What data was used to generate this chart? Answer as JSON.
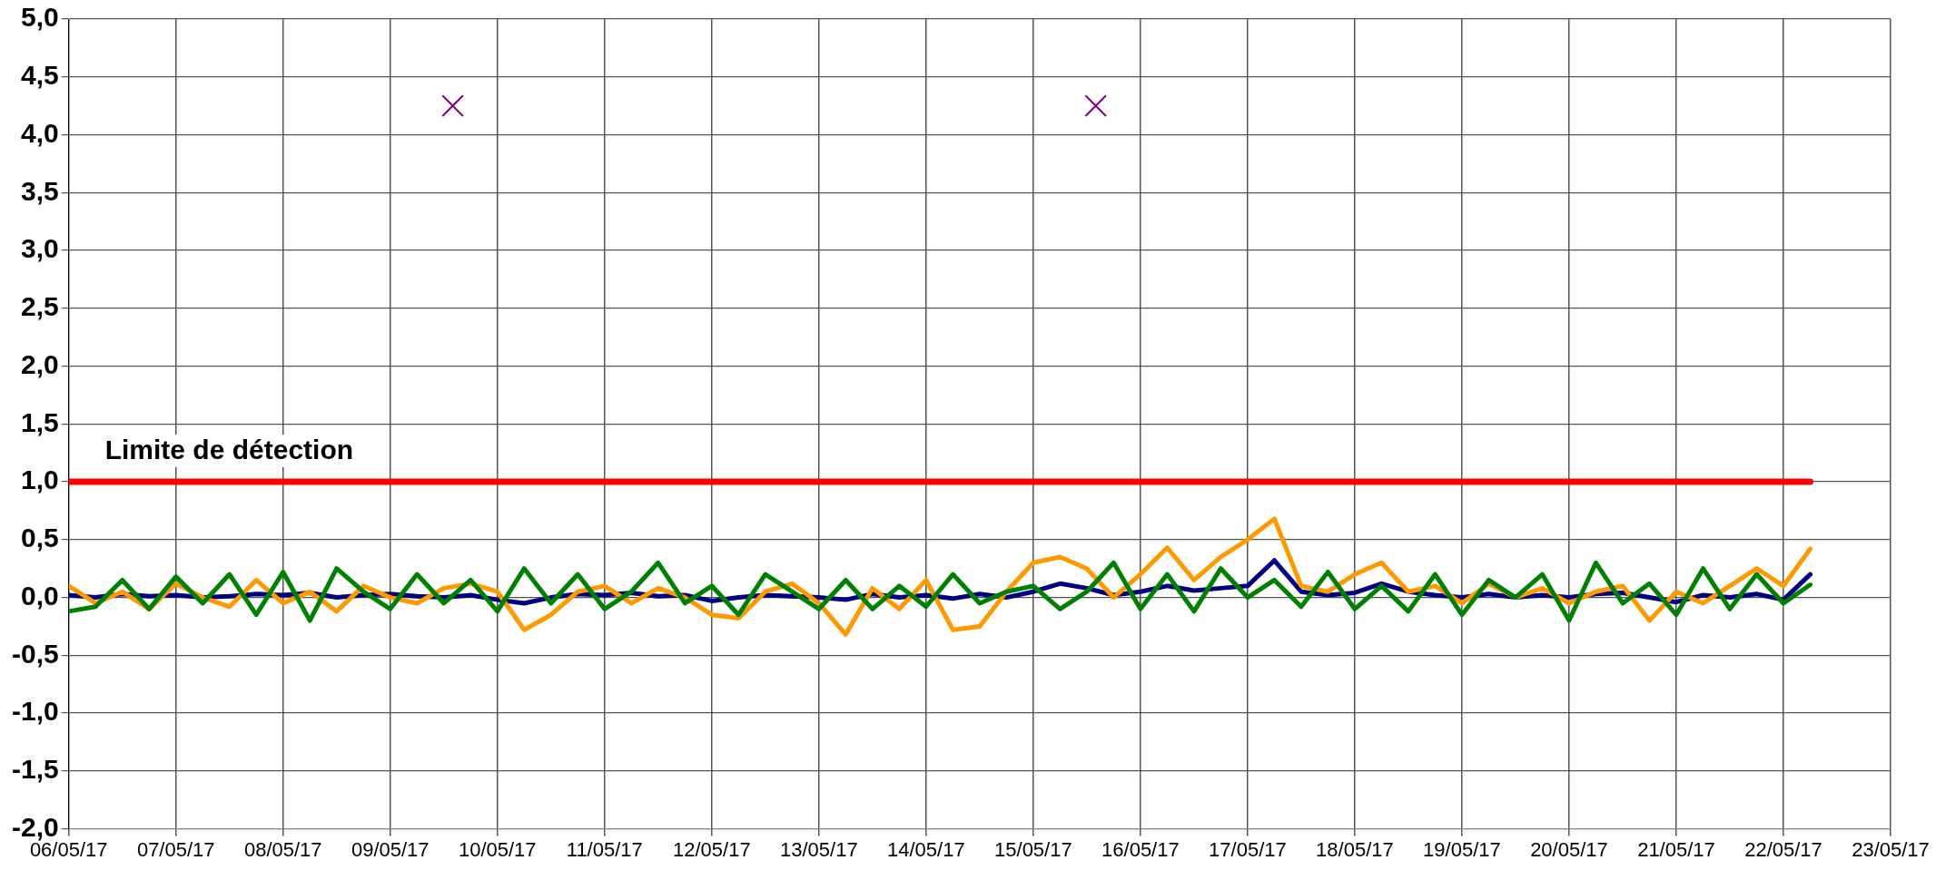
{
  "chart_data": {
    "type": "line",
    "x": [
      "--05-06T00:00",
      "--05-06T06:00",
      "--05-06T12:00",
      "--05-06T18:00",
      "--05-07T00:00",
      "--05-07T06:00",
      "--05-07T12:00",
      "--05-07T18:00",
      "--05-08T00:00",
      "--05-08T06:00",
      "--05-08T12:00",
      "--05-08T18:00",
      "--05-09T00:00",
      "--05-09T06:00",
      "--05-09T12:00",
      "--05-09T18:00",
      "--05-10T00:00",
      "--05-10T06:00",
      "--05-10T12:00",
      "--05-10T18:00",
      "--05-11T00:00",
      "--05-11T06:00",
      "--05-11T12:00",
      "--05-11T18:00",
      "--05-12T00:00",
      "--05-12T06:00",
      "--05-12T12:00",
      "--05-12T18:00",
      "--05-13T00:00",
      "--05-13T06:00",
      "--05-13T12:00",
      "--05-13T18:00",
      "--05-14T00:00",
      "--05-14T06:00",
      "--05-14T12:00",
      "--05-14T18:00",
      "--05-15T00:00",
      "--05-15T06:00",
      "--05-15T12:00",
      "--05-15T18:00",
      "--05-16T00:00",
      "--05-16T06:00",
      "--05-16T12:00",
      "--05-16T18:00",
      "--05-17T00:00",
      "--05-17T06:00",
      "--05-17T12:00",
      "--05-17T18:00",
      "--05-18T00:00",
      "--05-18T06:00",
      "--05-18T12:00",
      "--05-18T18:00",
      "--05-19T00:00",
      "--05-19T06:00",
      "--05-19T12:00",
      "--05-19T18:00",
      "--05-20T00:00",
      "--05-20T06:00",
      "--05-20T12:00",
      "--05-20T18:00",
      "--05-21T00:00",
      "--05-21T06:00",
      "--05-21T12:00",
      "--05-21T18:00",
      "--05-22T00:00",
      "--05-22T06:00"
    ],
    "series": [
      {
        "color": "#000080",
        "values": [
          0.02,
          0.0,
          0.03,
          0.01,
          0.02,
          0.0,
          0.01,
          0.03,
          0.02,
          0.04,
          0.0,
          0.02,
          0.03,
          0.01,
          0.0,
          0.02,
          -0.02,
          -0.05,
          0.0,
          0.03,
          0.02,
          0.04,
          0.01,
          0.02,
          -0.03,
          0.0,
          0.02,
          0.01,
          0.0,
          -0.02,
          0.03,
          0.0,
          0.02,
          -0.01,
          0.03,
          0.0,
          0.05,
          0.12,
          0.08,
          0.02,
          0.05,
          0.1,
          0.06,
          0.08,
          0.1,
          0.32,
          0.05,
          0.02,
          0.04,
          0.12,
          0.05,
          0.02,
          0.0,
          0.03,
          0.0,
          0.02,
          0.0,
          0.03,
          0.04,
          0.0,
          -0.04,
          0.02,
          0.0,
          0.03,
          -0.02,
          0.2
        ]
      },
      {
        "color": "#ff9900",
        "values": [
          0.1,
          -0.05,
          0.05,
          -0.1,
          0.12,
          0.0,
          -0.08,
          0.15,
          -0.05,
          0.05,
          -0.12,
          0.1,
          0.0,
          -0.05,
          0.08,
          0.12,
          0.05,
          -0.28,
          -0.15,
          0.05,
          0.1,
          -0.05,
          0.08,
          0.0,
          -0.15,
          -0.18,
          0.05,
          0.12,
          -0.05,
          -0.32,
          0.08,
          -0.1,
          0.15,
          -0.28,
          -0.25,
          0.05,
          0.3,
          0.35,
          0.25,
          0.0,
          0.2,
          0.43,
          0.15,
          0.35,
          0.5,
          0.68,
          0.1,
          0.05,
          0.2,
          0.3,
          0.05,
          0.1,
          -0.05,
          0.12,
          0.0,
          0.08,
          -0.05,
          0.05,
          0.1,
          -0.2,
          0.05,
          -0.05,
          0.1,
          0.25,
          0.1,
          0.42
        ]
      },
      {
        "color": "#008000",
        "values": [
          -0.12,
          -0.08,
          0.15,
          -0.1,
          0.18,
          -0.05,
          0.2,
          -0.15,
          0.22,
          -0.2,
          0.25,
          0.05,
          -0.1,
          0.2,
          -0.05,
          0.15,
          -0.12,
          0.25,
          -0.05,
          0.2,
          -0.1,
          0.05,
          0.3,
          -0.05,
          0.1,
          -0.15,
          0.2,
          0.05,
          -0.1,
          0.15,
          -0.1,
          0.1,
          -0.08,
          0.2,
          -0.05,
          0.05,
          0.1,
          -0.1,
          0.05,
          0.3,
          -0.1,
          0.2,
          -0.12,
          0.25,
          0.0,
          0.15,
          -0.08,
          0.22,
          -0.1,
          0.1,
          -0.12,
          0.2,
          -0.15,
          0.15,
          0.0,
          0.2,
          -0.2,
          0.3,
          -0.05,
          0.12,
          -0.15,
          0.25,
          -0.1,
          0.2,
          -0.05,
          0.11
        ]
      },
      {
        "name": "Limite de détection",
        "color": "#ff0000",
        "x": [
          "--05-06T00:00",
          "--05-22T06:00"
        ],
        "values": [
          1.0,
          1.0
        ]
      },
      {
        "type": "scatter",
        "marker": "cross",
        "color": "#800080",
        "x": [
          "--05-09T14:00",
          "--05-15T14:00"
        ],
        "values": [
          4.25,
          4.25
        ]
      }
    ],
    "xlim": [
      "--05-06",
      "--05-23"
    ],
    "xticks": [
      {
        "value": "--05-06",
        "label": "06/05/17"
      },
      {
        "value": "--05-07",
        "label": "07/05/17"
      },
      {
        "value": "--05-08",
        "label": "08/05/17"
      },
      {
        "value": "--05-09",
        "label": "09/05/17"
      },
      {
        "value": "--05-10",
        "label": "10/05/17"
      },
      {
        "value": "--05-11",
        "label": "11/05/17"
      },
      {
        "value": "--05-12",
        "label": "12/05/17"
      },
      {
        "value": "--05-13",
        "label": "13/05/17"
      },
      {
        "value": "--05-14",
        "label": "14/05/17"
      },
      {
        "value": "--05-15",
        "label": "15/05/17"
      },
      {
        "value": "--05-16",
        "label": "16/05/17"
      },
      {
        "value": "--05-17",
        "label": "17/05/17"
      },
      {
        "value": "--05-18",
        "label": "18/05/17"
      },
      {
        "value": "--05-19",
        "label": "19/05/17"
      },
      {
        "value": "--05-20",
        "label": "20/05/17"
      },
      {
        "value": "--05-21",
        "label": "21/05/17"
      },
      {
        "value": "--05-22",
        "label": "22/05/17"
      },
      {
        "value": "--05-23",
        "label": "23/05/17"
      }
    ],
    "ylim": [
      -2.0,
      5.0
    ],
    "yticks": [
      {
        "value": -2.0,
        "label": "-2,0"
      },
      {
        "value": -1.5,
        "label": "-1,5"
      },
      {
        "value": -1.0,
        "label": "-1,0"
      },
      {
        "value": -0.5,
        "label": "-0,5"
      },
      {
        "value": 0.0,
        "label": "0,0"
      },
      {
        "value": 0.5,
        "label": "0,5"
      },
      {
        "value": 1.0,
        "label": "1,0"
      },
      {
        "value": 1.5,
        "label": "1,5"
      },
      {
        "value": 2.0,
        "label": "2,0"
      },
      {
        "value": 2.5,
        "label": "2,5"
      },
      {
        "value": 3.0,
        "label": "3,0"
      },
      {
        "value": 3.5,
        "label": "3,5"
      },
      {
        "value": 4.0,
        "label": "4,0"
      },
      {
        "value": 4.5,
        "label": "4,5"
      },
      {
        "value": 5.0,
        "label": "5,0"
      }
    ],
    "grid": true,
    "marker": "none",
    "line_style": "solid"
  }
}
